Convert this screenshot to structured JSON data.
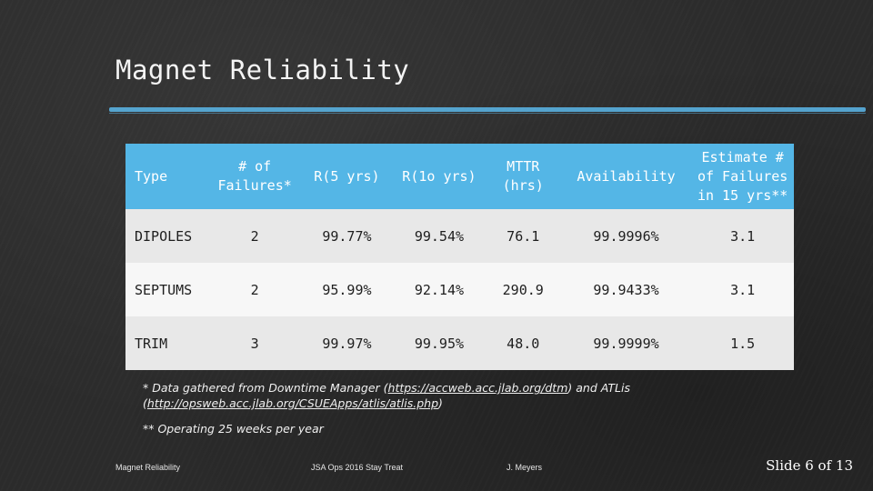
{
  "slide": {
    "title": "Magnet Reliability"
  },
  "table": {
    "headers": [
      "Type",
      "# of\nFailures*",
      "R(5 yrs)",
      "R(1o yrs)",
      "MTTR\n(hrs)",
      "Availability",
      "Estimate #\nof Failures\nin 15 yrs**"
    ],
    "rows": [
      [
        "DIPOLES",
        "2",
        "99.77%",
        "99.54%",
        "76.1",
        "99.9996%",
        "3.1"
      ],
      [
        "SEPTUMS",
        "2",
        "95.99%",
        "92.14%",
        "290.9",
        "99.9433%",
        "3.1"
      ],
      [
        "TRIM",
        "3",
        "99.97%",
        "99.95%",
        "48.0",
        "99.9999%",
        "1.5"
      ]
    ]
  },
  "notes": {
    "note1_prefix": "* Data gathered from Downtime Manager (",
    "note1_link1": "https://accweb.acc.jlab.org/dtm",
    "note1_mid": ")  and ATLis",
    "note1_open": "(",
    "note1_link2": "http://opsweb.acc.jlab.org/CSUEApps/atlis/atlis.php",
    "note1_close": ")",
    "note2": "** Operating 25 weeks per year"
  },
  "footer": {
    "left": "Magnet Reliability",
    "center": "JSA Ops 2016 Stay Treat",
    "right": "J. Meyers",
    "slide_number": "Slide 6 of 13"
  }
}
